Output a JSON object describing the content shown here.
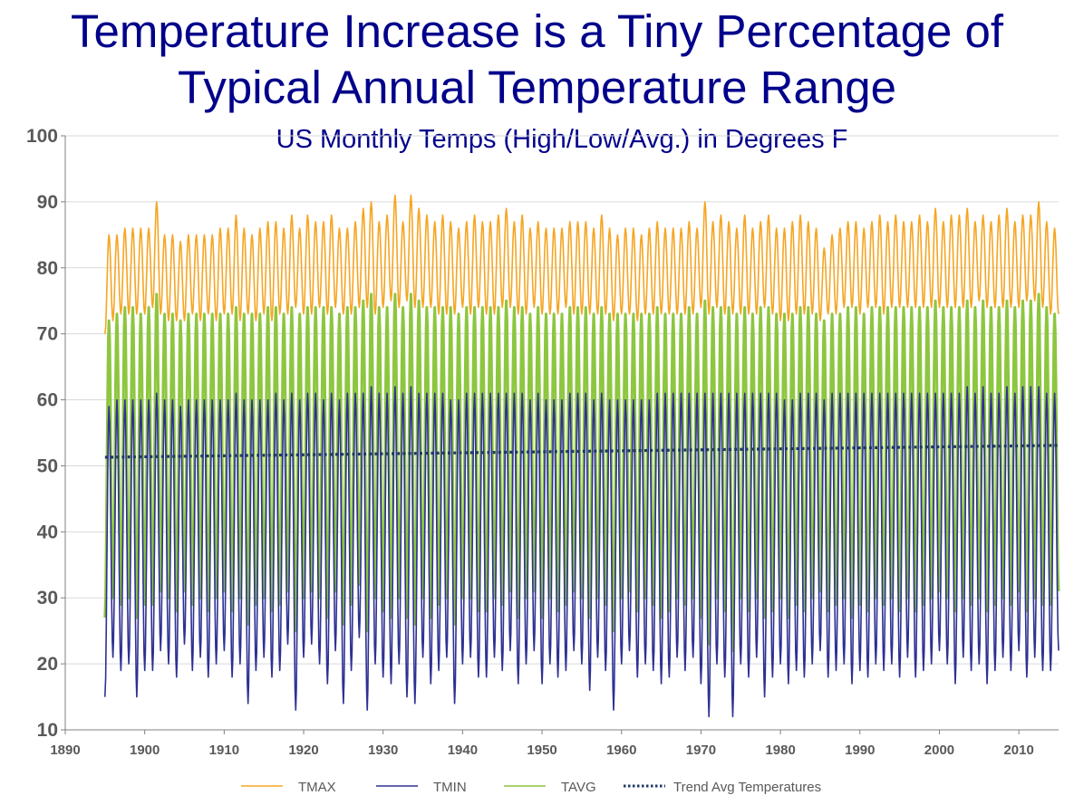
{
  "chart_data": {
    "type": "line",
    "title": "Temperature Increase is a Tiny Percentage of Typical Annual Temperature Range",
    "subtitle": "US Monthly Temps (High/Low/Avg.) in Degrees F",
    "xlabel": "",
    "ylabel": "",
    "xlim": [
      1890,
      2015
    ],
    "ylim": [
      10,
      100
    ],
    "x_ticks": [
      1890,
      1900,
      1910,
      1920,
      1930,
      1940,
      1950,
      1960,
      1970,
      1980,
      1990,
      2000,
      2010
    ],
    "y_ticks": [
      10,
      20,
      30,
      40,
      50,
      60,
      70,
      80,
      90,
      100
    ],
    "start_year": 1895,
    "end_year": 2015,
    "series": [
      {
        "name": "TMAX",
        "color": "#F5A623",
        "summer_peak": [
          85,
          85,
          86,
          86,
          86,
          86,
          90,
          85,
          85,
          84,
          85,
          85,
          85,
          85,
          86,
          86,
          88,
          86,
          85,
          86,
          87,
          87,
          86,
          88,
          86,
          88,
          87,
          87,
          88,
          86,
          86,
          87,
          89,
          90,
          87,
          88,
          91,
          87,
          91,
          89,
          88,
          87,
          88,
          87,
          86,
          87,
          88,
          87,
          87,
          88,
          89,
          87,
          88,
          86,
          87,
          86,
          86,
          86,
          87,
          87,
          87,
          86,
          88,
          86,
          85,
          86,
          86,
          85,
          86,
          87,
          86,
          86,
          86,
          87,
          86,
          90,
          87,
          88,
          87,
          86,
          88,
          86,
          87,
          88,
          86,
          86,
          87,
          88,
          87,
          86,
          83,
          85,
          86,
          87,
          87,
          86,
          87,
          88,
          87,
          88,
          87,
          87,
          88,
          87,
          89,
          87,
          88,
          88,
          89,
          87,
          88,
          87,
          88,
          89,
          87,
          88,
          88,
          90,
          87,
          86,
          85
        ],
        "winter_low": [
          70,
          72,
          73,
          73,
          73,
          73,
          74,
          73,
          72,
          72,
          72,
          73,
          72,
          73,
          72,
          73,
          73,
          72,
          73,
          72,
          73,
          72,
          73,
          73,
          74,
          73,
          73,
          74,
          73,
          74,
          73,
          73,
          74,
          74,
          73,
          74,
          75,
          74,
          75,
          74,
          74,
          74,
          73,
          73,
          73,
          74,
          73,
          74,
          73,
          73,
          74,
          74,
          73,
          73,
          74,
          73,
          73,
          73,
          74,
          73,
          73,
          73,
          73,
          73,
          72,
          73,
          73,
          72,
          73,
          73,
          73,
          73,
          73,
          73,
          73,
          74,
          73,
          74,
          73,
          73,
          73,
          73,
          73,
          74,
          73,
          72,
          72,
          73,
          73,
          73,
          72,
          73,
          73,
          74,
          74,
          73,
          74,
          74,
          73,
          74,
          74,
          74,
          74,
          74,
          74,
          74,
          74,
          74,
          74,
          74,
          75,
          74,
          74,
          74,
          74,
          74,
          75,
          75,
          74,
          73,
          73
        ]
      },
      {
        "name": "TMIN",
        "color": "#2E3192",
        "summer_peak": [
          59,
          60,
          60,
          60,
          60,
          60,
          61,
          60,
          60,
          59,
          60,
          60,
          60,
          60,
          60,
          60,
          61,
          60,
          60,
          60,
          60,
          61,
          60,
          61,
          60,
          61,
          61,
          60,
          61,
          60,
          61,
          61,
          61,
          62,
          61,
          61,
          62,
          61,
          62,
          61,
          61,
          61,
          61,
          60,
          60,
          61,
          61,
          61,
          61,
          61,
          61,
          61,
          61,
          60,
          61,
          60,
          60,
          60,
          61,
          61,
          61,
          60,
          61,
          60,
          60,
          60,
          60,
          60,
          60,
          61,
          61,
          61,
          61,
          61,
          61,
          61,
          61,
          61,
          61,
          61,
          61,
          61,
          61,
          61,
          61,
          60,
          60,
          61,
          61,
          61,
          60,
          61,
          61,
          61,
          61,
          61,
          61,
          61,
          61,
          61,
          61,
          61,
          61,
          61,
          61,
          61,
          61,
          61,
          62,
          61,
          62,
          61,
          61,
          62,
          61,
          62,
          62,
          62,
          61,
          61,
          61
        ],
        "winter_low": [
          15,
          21,
          19,
          20,
          15,
          19,
          19,
          22,
          20,
          18,
          23,
          19,
          21,
          18,
          20,
          22,
          18,
          20,
          14,
          19,
          21,
          18,
          19,
          23,
          13,
          21,
          23,
          20,
          17,
          22,
          14,
          19,
          24,
          13,
          20,
          18,
          17,
          20,
          15,
          14,
          21,
          17,
          19,
          21,
          14,
          20,
          21,
          18,
          18,
          21,
          19,
          22,
          17,
          20,
          22,
          17,
          20,
          18,
          19,
          22,
          20,
          16,
          21,
          19,
          13,
          20,
          22,
          18,
          20,
          19,
          17,
          18,
          21,
          19,
          21,
          17,
          12,
          20,
          18,
          12,
          20,
          18,
          21,
          15,
          18,
          20,
          17,
          19,
          18,
          20,
          22,
          18,
          19,
          20,
          17,
          19,
          18,
          20,
          19,
          20,
          18,
          21,
          18,
          19,
          20,
          22,
          20,
          17,
          21,
          19,
          20,
          17,
          19,
          21,
          19,
          22,
          18,
          21,
          19,
          19,
          22
        ]
      },
      {
        "name": "TAVG",
        "color": "#8DC63F",
        "summer_peak": [
          72,
          73,
          74,
          74,
          73,
          74,
          76,
          73,
          73,
          72,
          73,
          73,
          73,
          73,
          73,
          73,
          74,
          73,
          73,
          73,
          74,
          74,
          73,
          74,
          73,
          74,
          74,
          74,
          74,
          73,
          74,
          74,
          75,
          76,
          74,
          74,
          76,
          74,
          76,
          75,
          74,
          74,
          74,
          74,
          73,
          74,
          74,
          74,
          74,
          74,
          75,
          74,
          74,
          73,
          74,
          73,
          73,
          73,
          74,
          74,
          74,
          73,
          74,
          73,
          73,
          73,
          73,
          73,
          73,
          74,
          73,
          73,
          73,
          74,
          73,
          75,
          74,
          74,
          74,
          73,
          74,
          73,
          74,
          74,
          73,
          73,
          73,
          74,
          74,
          73,
          72,
          73,
          73,
          74,
          74,
          73,
          74,
          74,
          74,
          74,
          74,
          74,
          74,
          74,
          75,
          74,
          74,
          74,
          75,
          74,
          75,
          74,
          74,
          75,
          74,
          75,
          75,
          76,
          74,
          73,
          73
        ],
        "winter_low": [
          27,
          30,
          29,
          30,
          27,
          29,
          29,
          31,
          30,
          28,
          31,
          29,
          30,
          28,
          30,
          31,
          28,
          30,
          26,
          29,
          30,
          28,
          29,
          31,
          25,
          30,
          31,
          30,
          27,
          31,
          26,
          29,
          32,
          25,
          30,
          28,
          27,
          30,
          27,
          26,
          30,
          27,
          29,
          30,
          26,
          30,
          30,
          28,
          28,
          30,
          29,
          31,
          27,
          30,
          31,
          27,
          30,
          28,
          29,
          31,
          30,
          27,
          30,
          29,
          25,
          30,
          31,
          28,
          30,
          29,
          27,
          28,
          30,
          29,
          30,
          27,
          23,
          30,
          28,
          22,
          30,
          28,
          30,
          27,
          28,
          30,
          27,
          29,
          28,
          30,
          31,
          28,
          29,
          30,
          27,
          29,
          28,
          30,
          29,
          30,
          28,
          30,
          28,
          29,
          30,
          31,
          30,
          28,
          30,
          29,
          30,
          28,
          29,
          30,
          29,
          31,
          28,
          30,
          29,
          29,
          31
        ]
      }
    ],
    "trend": {
      "name": "Trend Avg Temperatures",
      "color": "#1F3864",
      "start": {
        "x": 1895,
        "y": 51.3
      },
      "end": {
        "x": 2015,
        "y": 53.1
      }
    },
    "legend_position": "bottom"
  }
}
